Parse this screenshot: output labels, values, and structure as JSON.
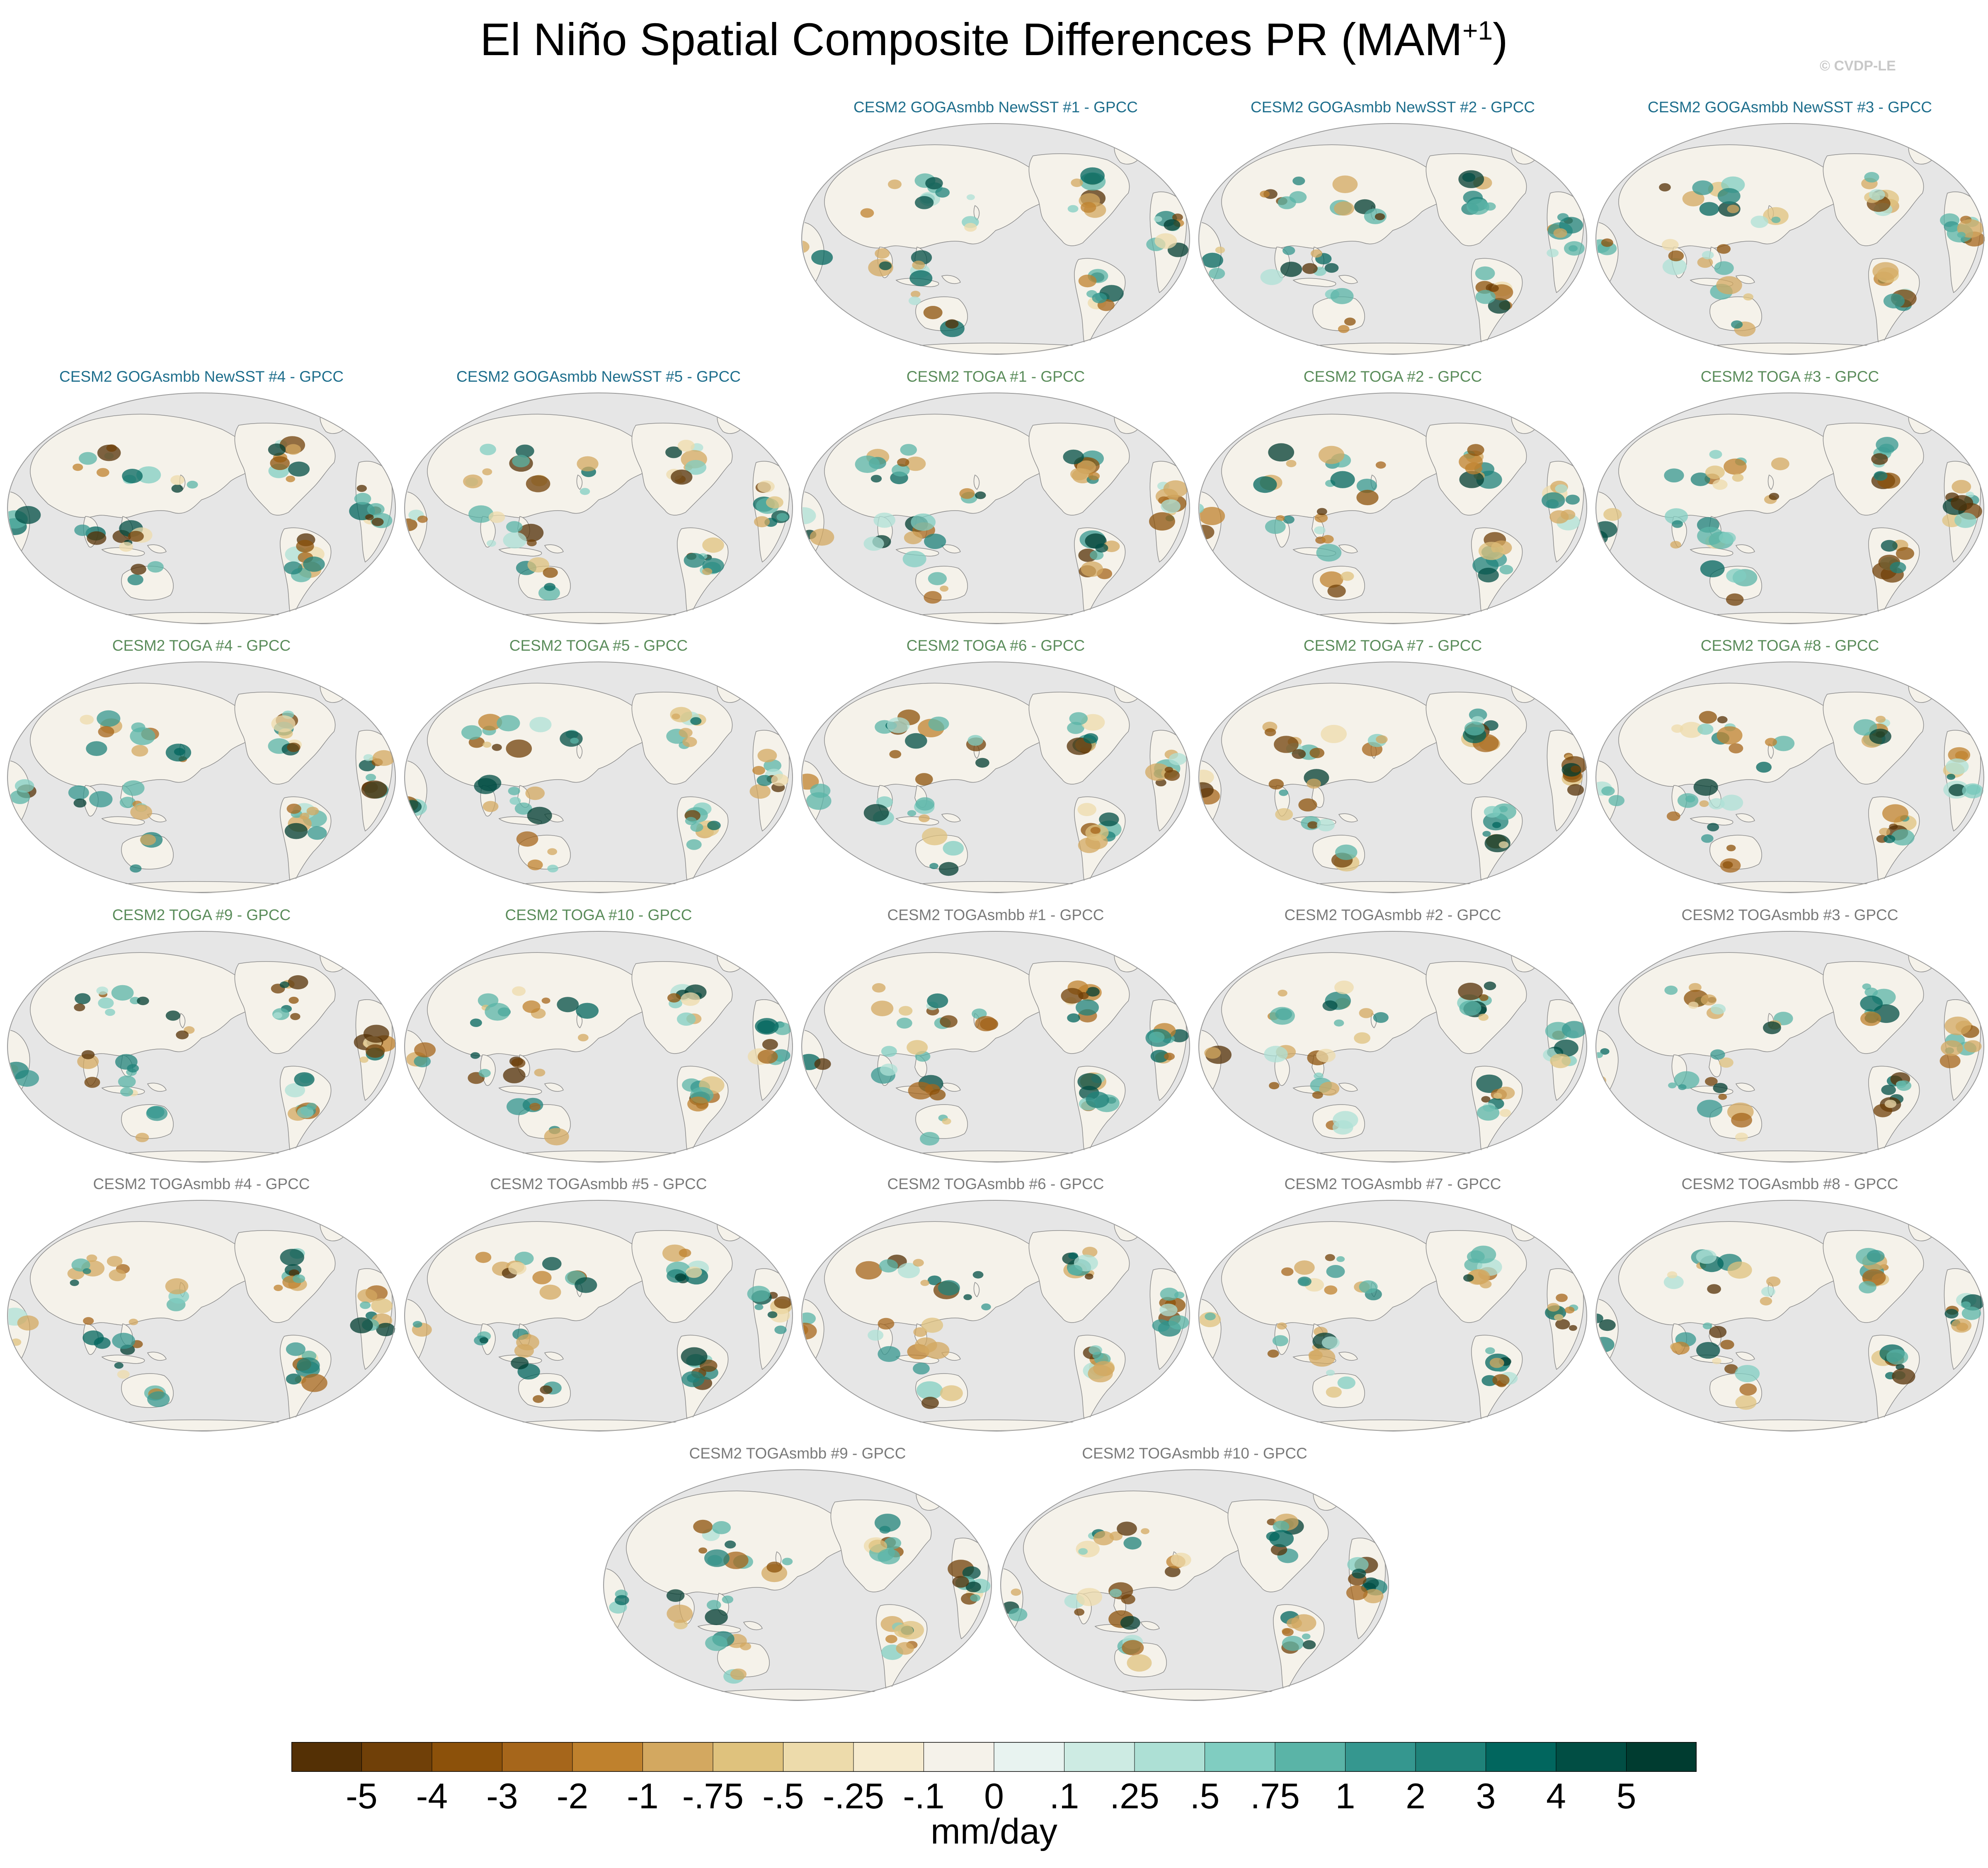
{
  "title": "El Niño Spatial Composite Differences PR (MAM",
  "title_superscript": "+1",
  "title_suffix": ")",
  "credit": "© CVDP-LE",
  "colors": {
    "ocean_bg": "#e6e6e6",
    "coast": "#8c8c8c",
    "group_goga": "#1e6e8c",
    "group_toga": "#5a8c5a",
    "group_togasmbb": "#7a7a7a"
  },
  "panels": [
    {
      "title": "CESM2 GOGAsmbb NewSST #1 - GPCC",
      "group": "goga"
    },
    {
      "title": "CESM2 GOGAsmbb NewSST #2 - GPCC",
      "group": "goga"
    },
    {
      "title": "CESM2 GOGAsmbb NewSST #3 - GPCC",
      "group": "goga"
    },
    {
      "title": "CESM2 GOGAsmbb NewSST #4 - GPCC",
      "group": "goga"
    },
    {
      "title": "CESM2 GOGAsmbb NewSST #5 - GPCC",
      "group": "goga"
    },
    {
      "title": "CESM2 TOGA #1 - GPCC",
      "group": "toga"
    },
    {
      "title": "CESM2 TOGA #2 - GPCC",
      "group": "toga"
    },
    {
      "title": "CESM2 TOGA #3 - GPCC",
      "group": "toga"
    },
    {
      "title": "CESM2 TOGA #4 - GPCC",
      "group": "toga"
    },
    {
      "title": "CESM2 TOGA #5 - GPCC",
      "group": "toga"
    },
    {
      "title": "CESM2 TOGA #6 - GPCC",
      "group": "toga"
    },
    {
      "title": "CESM2 TOGA #7 - GPCC",
      "group": "toga"
    },
    {
      "title": "CESM2 TOGA #8 - GPCC",
      "group": "toga"
    },
    {
      "title": "CESM2 TOGA #9 - GPCC",
      "group": "toga"
    },
    {
      "title": "CESM2 TOGA #10 - GPCC",
      "group": "toga"
    },
    {
      "title": "CESM2 TOGAsmbb #1 - GPCC",
      "group": "togasmbb"
    },
    {
      "title": "CESM2 TOGAsmbb #2 - GPCC",
      "group": "togasmbb"
    },
    {
      "title": "CESM2 TOGAsmbb #3 - GPCC",
      "group": "togasmbb"
    },
    {
      "title": "CESM2 TOGAsmbb #4 - GPCC",
      "group": "togasmbb"
    },
    {
      "title": "CESM2 TOGAsmbb #5 - GPCC",
      "group": "togasmbb"
    },
    {
      "title": "CESM2 TOGAsmbb #6 - GPCC",
      "group": "togasmbb"
    },
    {
      "title": "CESM2 TOGAsmbb #7 - GPCC",
      "group": "togasmbb"
    },
    {
      "title": "CESM2 TOGAsmbb #8 - GPCC",
      "group": "togasmbb"
    },
    {
      "title": "CESM2 TOGAsmbb #9 - GPCC",
      "group": "togasmbb"
    },
    {
      "title": "CESM2 TOGAsmbb #10 - GPCC",
      "group": "togasmbb"
    }
  ],
  "colorbar": {
    "labels": [
      "-5",
      "-4",
      "-3",
      "-2",
      "-1",
      "-.75",
      "-.5",
      "-.25",
      "-.1",
      "0",
      ".1",
      ".25",
      ".5",
      ".75",
      "1",
      "2",
      "3",
      "4",
      "5"
    ],
    "colors": [
      "#543005",
      "#704008",
      "#8c510a",
      "#a6661b",
      "#bf812d",
      "#d3a860",
      "#dfc27d",
      "#eddbab",
      "#f6ebcf",
      "#f5f2ea",
      "#e8f3f0",
      "#cdebe3",
      "#ade0d5",
      "#80cdc1",
      "#5ab4a7",
      "#35978f",
      "#1f8279",
      "#01665e",
      "#014e44",
      "#003c30"
    ],
    "units": "mm/day"
  }
}
